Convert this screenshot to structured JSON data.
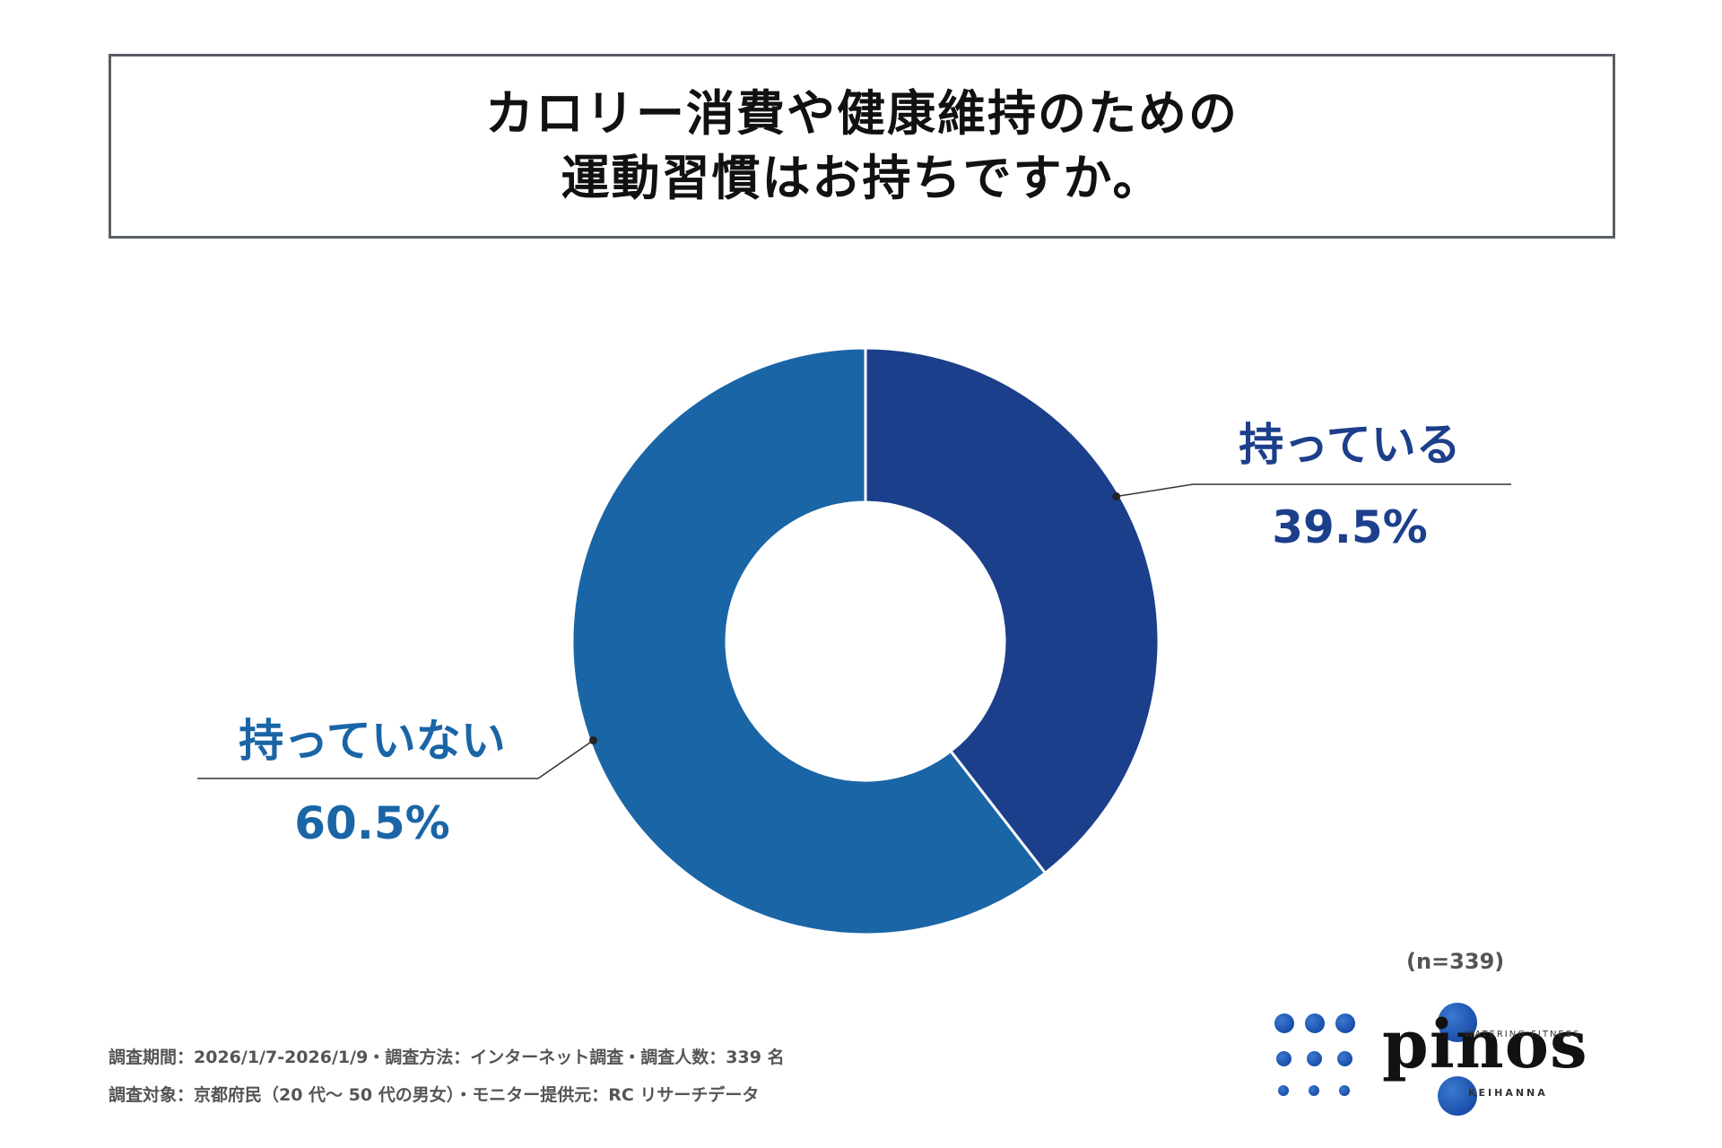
{
  "title": {
    "line1": "カロリー消費や健康維持のための",
    "line2": "運動習慣はお持ちですか。"
  },
  "chart_data": {
    "type": "pie",
    "variant": "donut",
    "slices": [
      {
        "label": "持っている",
        "value": 39.5,
        "value_label": "39.5%",
        "color": "#1c3f8c"
      },
      {
        "label": "持っていない",
        "value": 60.5,
        "value_label": "60.5%",
        "color": "#1a65a6"
      }
    ],
    "legend": "none"
  },
  "sample_size": "(n=339)",
  "notes": {
    "line1": "調査期間：2026/1/7-2026/1/9・調査方法：インターネット調査・調査人数：339 名",
    "line2": "調査対象：京都府民（20 代～ 50 代の男女）・モニター提供元：RC リサーチデータ"
  },
  "logo": {
    "name": "pinos",
    "tagline": "WATERING FITNESS",
    "sub": "KEIHANNA"
  },
  "colors": {
    "label_dark": "#1c3f8c",
    "label_light": "#1a65a6",
    "leader": "#333333"
  }
}
